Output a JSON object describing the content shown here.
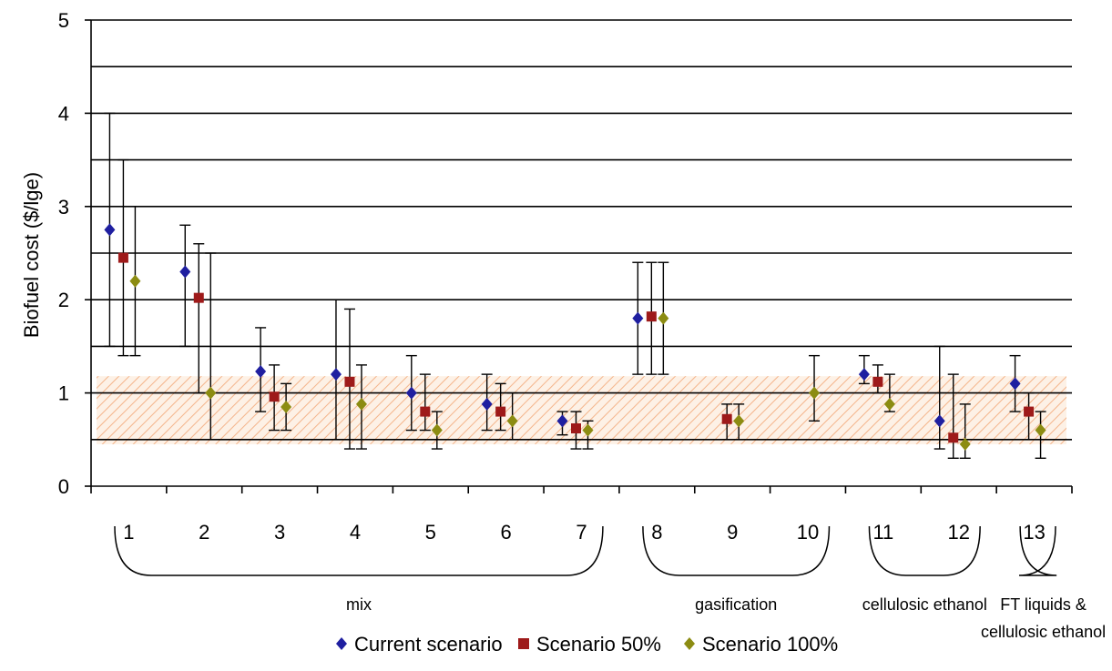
{
  "chart_data": {
    "type": "scatter",
    "ylabel": "Biofuel cost ($/lge)",
    "ylim": [
      0,
      5
    ],
    "yticks": [
      "0",
      "1",
      "2",
      "3",
      "4",
      "5"
    ],
    "gridlines": [
      0.5,
      1,
      1.5,
      2,
      2.5,
      3,
      3.5,
      4,
      4.5,
      5
    ],
    "categories": [
      "1",
      "2",
      "3",
      "4",
      "5",
      "6",
      "7",
      "8",
      "9",
      "10",
      "11",
      "12",
      "13"
    ],
    "shaded_band": [
      0.45,
      1.18
    ],
    "groups": [
      {
        "label": "mix",
        "from": 1,
        "to": 7
      },
      {
        "label": "gasification",
        "from": 8,
        "to": 10
      },
      {
        "label": "cellulosic ethanol",
        "from": 11,
        "to": 12
      },
      {
        "label_lines": [
          "FT liquids &",
          "cellulosic ethanol"
        ],
        "from": 13,
        "to": 13
      }
    ],
    "series": [
      {
        "name": "Current scenario",
        "marker": "diamond",
        "color": "#1f1fa0",
        "points": [
          {
            "x": 1,
            "y": 2.75,
            "low": 1.5,
            "high": 4.0
          },
          {
            "x": 2,
            "y": 2.3,
            "low": 1.5,
            "high": 2.8
          },
          {
            "x": 3,
            "y": 1.23,
            "low": 0.8,
            "high": 1.7
          },
          {
            "x": 4,
            "y": 1.2,
            "low": 0.5,
            "high": 2.0
          },
          {
            "x": 5,
            "y": 1.0,
            "low": 0.6,
            "high": 1.4
          },
          {
            "x": 6,
            "y": 0.88,
            "low": 0.6,
            "high": 1.2
          },
          {
            "x": 7,
            "y": 0.7,
            "low": 0.55,
            "high": 0.8
          },
          {
            "x": 8,
            "y": 1.8,
            "low": 1.2,
            "high": 2.4
          },
          {
            "x": 11,
            "y": 1.2,
            "low": 1.1,
            "high": 1.4
          },
          {
            "x": 12,
            "y": 0.7,
            "low": 0.4,
            "high": 1.5
          },
          {
            "x": 13,
            "y": 1.1,
            "low": 0.8,
            "high": 1.4
          }
        ]
      },
      {
        "name": "Scenario 50%",
        "marker": "square",
        "color": "#9e1a1a",
        "points": [
          {
            "x": 1,
            "y": 2.45,
            "low": 1.4,
            "high": 3.5
          },
          {
            "x": 2,
            "y": 2.02,
            "low": 1.0,
            "high": 2.6
          },
          {
            "x": 3,
            "y": 0.96,
            "low": 0.6,
            "high": 1.3
          },
          {
            "x": 4,
            "y": 1.12,
            "low": 0.4,
            "high": 1.9
          },
          {
            "x": 5,
            "y": 0.8,
            "low": 0.6,
            "high": 1.2
          },
          {
            "x": 6,
            "y": 0.8,
            "low": 0.6,
            "high": 1.1
          },
          {
            "x": 7,
            "y": 0.62,
            "low": 0.4,
            "high": 0.8
          },
          {
            "x": 8,
            "y": 1.82,
            "low": 1.2,
            "high": 2.4
          },
          {
            "x": 9,
            "y": 0.72,
            "low": 0.5,
            "high": 0.88
          },
          {
            "x": 11,
            "y": 1.12,
            "low": 1.0,
            "high": 1.3
          },
          {
            "x": 12,
            "y": 0.52,
            "low": 0.3,
            "high": 1.2
          },
          {
            "x": 13,
            "y": 0.8,
            "low": 0.5,
            "high": 1.0
          }
        ]
      },
      {
        "name": "Scenario 100%",
        "marker": "diamond",
        "color": "#8c8c12",
        "points": [
          {
            "x": 1,
            "y": 2.2,
            "low": 1.4,
            "high": 3.0
          },
          {
            "x": 2,
            "y": 1.0,
            "low": 0.5,
            "high": 2.5
          },
          {
            "x": 3,
            "y": 0.85,
            "low": 0.6,
            "high": 1.1
          },
          {
            "x": 4,
            "y": 0.88,
            "low": 0.4,
            "high": 1.3
          },
          {
            "x": 5,
            "y": 0.6,
            "low": 0.4,
            "high": 0.8
          },
          {
            "x": 6,
            "y": 0.7,
            "low": 0.5,
            "high": 1.0
          },
          {
            "x": 7,
            "y": 0.6,
            "low": 0.4,
            "high": 0.7
          },
          {
            "x": 8,
            "y": 1.8,
            "low": 1.2,
            "high": 2.4
          },
          {
            "x": 9,
            "y": 0.7,
            "low": 0.5,
            "high": 0.88
          },
          {
            "x": 10,
            "y": 1.0,
            "low": 0.7,
            "high": 1.4
          },
          {
            "x": 11,
            "y": 0.88,
            "low": 0.8,
            "high": 1.2
          },
          {
            "x": 12,
            "y": 0.45,
            "low": 0.3,
            "high": 0.88
          },
          {
            "x": 13,
            "y": 0.6,
            "low": 0.3,
            "high": 0.8
          }
        ]
      }
    ],
    "legend": {
      "placement": "bottom"
    }
  }
}
